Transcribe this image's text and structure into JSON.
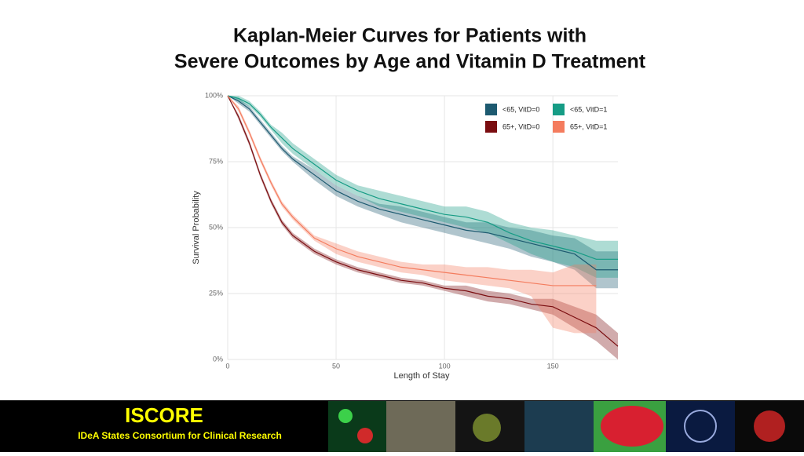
{
  "chart_data": {
    "type": "line",
    "title": [
      "Kaplan-Meier Curves for Patients with",
      "Severe Outcomes by Age and Vitamin D Treatment"
    ],
    "x_label": "Length of Stay",
    "y_label": "Survival Probability",
    "x": [
      0,
      5,
      10,
      15,
      20,
      25,
      30,
      40,
      50,
      60,
      70,
      80,
      90,
      100,
      110,
      120,
      130,
      140,
      150,
      160,
      170,
      180
    ],
    "xlim": [
      0,
      180
    ],
    "xticks": [
      0,
      50,
      100,
      150
    ],
    "ylim": [
      0,
      100
    ],
    "yticks": [
      {
        "value": 0,
        "label": "0%"
      },
      {
        "value": 25,
        "label": "25%"
      },
      {
        "value": 50,
        "label": "50%"
      },
      {
        "value": 75,
        "label": "75%"
      },
      {
        "value": 100,
        "label": "100%"
      }
    ],
    "grid": true,
    "legend": "top-right",
    "series": [
      {
        "name": "<65, VitD=0",
        "color": "#1d5a70",
        "values": [
          100,
          98,
          95,
          90,
          85,
          80,
          76,
          70,
          64,
          60,
          57,
          55,
          53,
          51,
          49,
          48,
          46,
          44,
          42,
          40,
          34,
          34
        ],
        "lower": [
          100,
          97,
          94,
          89,
          84,
          79,
          75,
          68,
          62,
          58,
          55,
          52,
          50,
          48,
          46,
          44,
          42,
          39,
          37,
          34,
          27,
          27
        ],
        "upper": [
          100,
          99,
          96,
          91,
          86,
          81,
          77,
          72,
          66,
          62,
          59,
          58,
          56,
          54,
          52,
          52,
          50,
          49,
          47,
          46,
          41,
          41
        ]
      },
      {
        "name": "<65, VitD=1",
        "color": "#169c85",
        "values": [
          100,
          99,
          97,
          93,
          88,
          84,
          80,
          74,
          68,
          64,
          61,
          59,
          57,
          55,
          54,
          52,
          48,
          45,
          43,
          41,
          38,
          38
        ],
        "lower": [
          100,
          98,
          96,
          92,
          87,
          82,
          78,
          72,
          66,
          62,
          58,
          56,
          54,
          52,
          50,
          48,
          44,
          40,
          37,
          35,
          31,
          31
        ],
        "upper": [
          100,
          100,
          98,
          94,
          89,
          86,
          82,
          76,
          70,
          66,
          64,
          62,
          60,
          58,
          58,
          56,
          52,
          50,
          49,
          47,
          45,
          45
        ]
      },
      {
        "name": "65+, VitD=0",
        "color": "#7a0d10",
        "values": [
          100,
          92,
          82,
          70,
          60,
          52,
          47,
          41,
          37,
          34,
          32,
          30,
          29,
          27,
          26,
          24,
          23,
          21,
          20,
          16,
          12,
          5
        ],
        "lower": [
          100,
          91,
          81,
          69,
          59,
          51,
          46,
          40,
          36,
          33,
          31,
          29,
          28,
          26,
          24,
          22,
          21,
          19,
          17,
          12,
          7,
          0
        ],
        "upper": [
          100,
          93,
          83,
          71,
          61,
          53,
          48,
          42,
          38,
          35,
          33,
          31,
          30,
          28,
          28,
          26,
          25,
          23,
          23,
          20,
          17,
          10
        ]
      },
      {
        "name": "65+, VitD=1",
        "color": "#f47c5e",
        "values": [
          100,
          95,
          86,
          76,
          67,
          59,
          54,
          46,
          42,
          39,
          37,
          35,
          34,
          33,
          32,
          31,
          30,
          29,
          28,
          28,
          28,
          null
        ],
        "lower": [
          100,
          94,
          85,
          75,
          66,
          58,
          53,
          45,
          40,
          37,
          35,
          33,
          32,
          30,
          29,
          28,
          27,
          24,
          12,
          10,
          10,
          null
        ],
        "upper": [
          100,
          96,
          87,
          77,
          68,
          60,
          55,
          47,
          44,
          41,
          39,
          37,
          36,
          36,
          35,
          35,
          34,
          34,
          33,
          36,
          36,
          null
        ]
      }
    ]
  },
  "footer": {
    "title": "ISCORE",
    "subtitle": "IDeA States Consortium for Clinical Research"
  }
}
